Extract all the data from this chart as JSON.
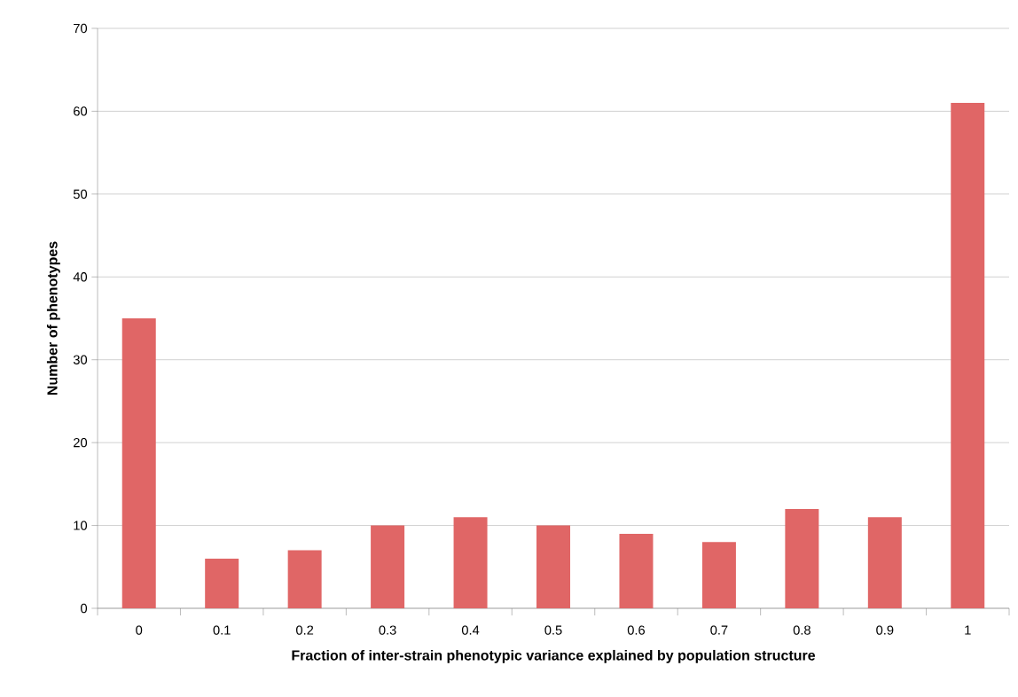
{
  "chart_data": {
    "type": "bar",
    "xlabel": "Fraction of inter-strain phenotypic variance explained by population structure",
    "ylabel": "Number of phenotypes",
    "categories": [
      "0",
      "0.1",
      "0.2",
      "0.3",
      "0.4",
      "0.5",
      "0.6",
      "0.7",
      "0.8",
      "0.9",
      "1"
    ],
    "values": [
      35,
      6,
      7,
      10,
      11,
      10,
      9,
      8,
      12,
      11,
      61
    ],
    "color": "#e06666",
    "ylim": [
      0,
      70
    ],
    "yticks": [
      0,
      10,
      20,
      30,
      40,
      50,
      60,
      70
    ],
    "grid": "y"
  }
}
